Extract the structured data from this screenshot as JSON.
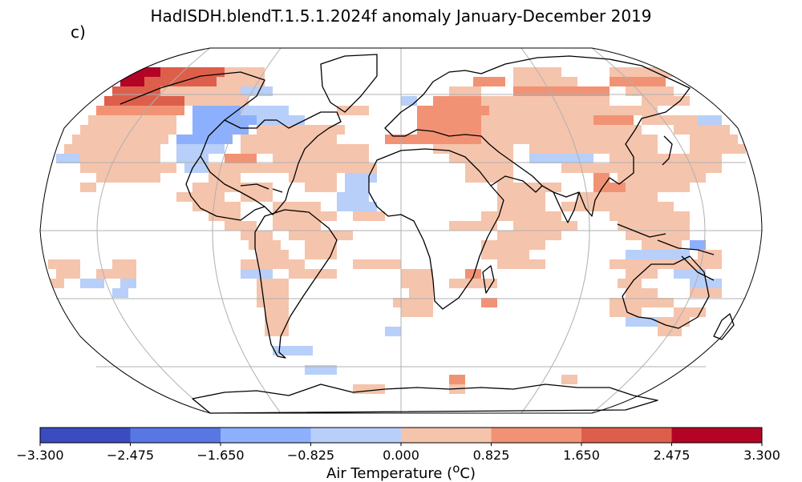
{
  "title": "HadISDH.blendT.1.5.1.2024f anomaly January-December 2019",
  "panel_label": "c)",
  "colorbar": {
    "label_prefix": "Air Temperature (",
    "label_sup": "o",
    "label_suffix": "C)",
    "ticks": [
      "−3.300",
      "−2.475",
      "−1.650",
      "−0.825",
      "0.000",
      "0.825",
      "1.650",
      "2.475",
      "3.300"
    ],
    "bins": [
      {
        "min": -3.3,
        "max": -2.475,
        "color": "#3b4cc0"
      },
      {
        "min": -2.475,
        "max": -1.65,
        "color": "#5977e3"
      },
      {
        "min": -1.65,
        "max": -0.825,
        "color": "#8db0fe"
      },
      {
        "min": -0.825,
        "max": 0.0,
        "color": "#b7cff9"
      },
      {
        "min": 0.0,
        "max": 0.825,
        "color": "#f5c4ac"
      },
      {
        "min": 0.825,
        "max": 1.65,
        "color": "#f29274"
      },
      {
        "min": 1.65,
        "max": 2.475,
        "color": "#dd5f4b"
      },
      {
        "min": 2.475,
        "max": 3.3,
        "color": "#b40426"
      }
    ]
  },
  "map": {
    "projection": "Robinson",
    "gridlines": true,
    "anomaly_regions_approx": [
      {
        "region": "Greenland / Arctic Canada",
        "bin": 7
      },
      {
        "region": "Northern Canada",
        "bin": 6
      },
      {
        "region": "Central & eastern Canada",
        "bin": 2
      },
      {
        "region": "Europe & western Russia",
        "bin": 5
      },
      {
        "region": "Siberia",
        "bin": 4
      },
      {
        "region": "Africa",
        "bin": 4
      },
      {
        "region": "South America",
        "bin": 4
      },
      {
        "region": "Australia",
        "bin": 4
      },
      {
        "region": "Tropical Atlantic",
        "bin": 3
      }
    ]
  }
}
